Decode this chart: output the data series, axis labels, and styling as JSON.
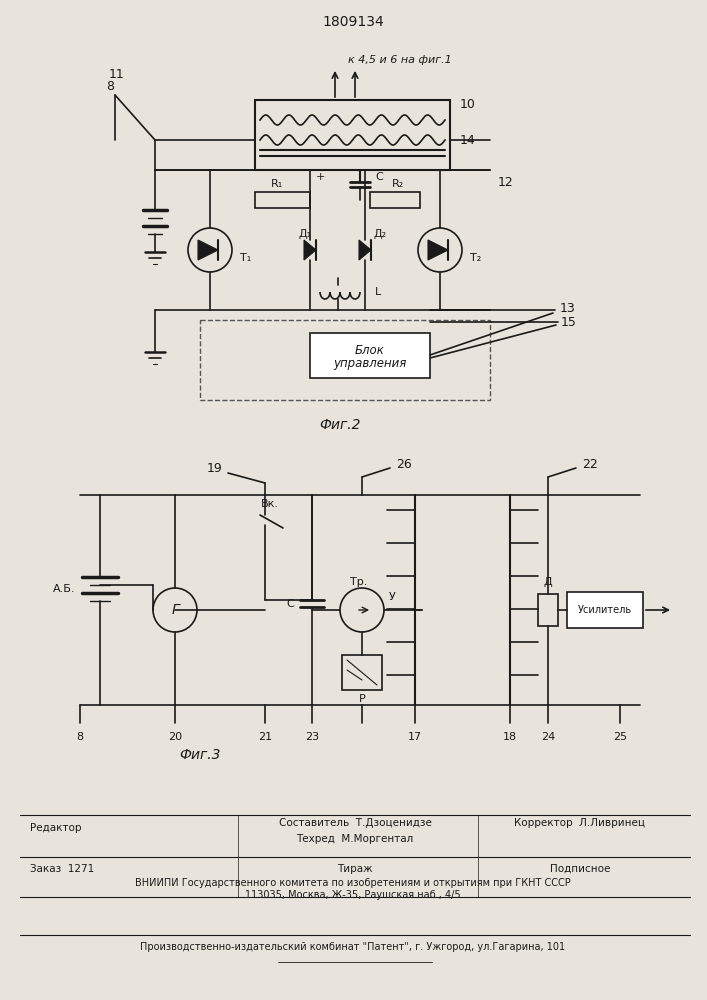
{
  "title": "1809134",
  "title_fontsize": 11,
  "bg_color": "#e8e4dc",
  "line_color": "#1a1a1a",
  "fig2_label": "Фиг.2",
  "fig3_label": "Фиг.3",
  "top_label": "к 4,5 и 6 на фиг.1",
  "font_handwritten": "DejaVu Sans",
  "font_print": "DejaVu Sans"
}
